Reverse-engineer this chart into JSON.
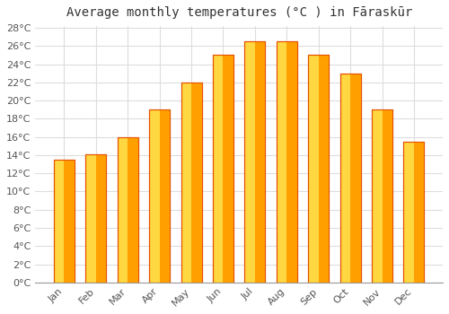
{
  "title": "Average monthly temperatures (°C ) in Fāraskūr",
  "months": [
    "Jan",
    "Feb",
    "Mar",
    "Apr",
    "May",
    "Jun",
    "Jul",
    "Aug",
    "Sep",
    "Oct",
    "Nov",
    "Dec"
  ],
  "values": [
    13.5,
    14.1,
    16.0,
    19.0,
    22.0,
    25.0,
    26.5,
    26.5,
    25.0,
    23.0,
    19.0,
    15.5
  ],
  "bar_color_left": "#FFD740",
  "bar_color_right": "#FFA000",
  "bar_edge_color": "#E65100",
  "background_color": "#FFFFFF",
  "grid_color": "#DDDDDD",
  "ylim": [
    0,
    28
  ],
  "yticks": [
    0,
    2,
    4,
    6,
    8,
    10,
    12,
    14,
    16,
    18,
    20,
    22,
    24,
    26,
    28
  ],
  "title_fontsize": 10,
  "tick_fontsize": 8,
  "tick_color": "#555555"
}
